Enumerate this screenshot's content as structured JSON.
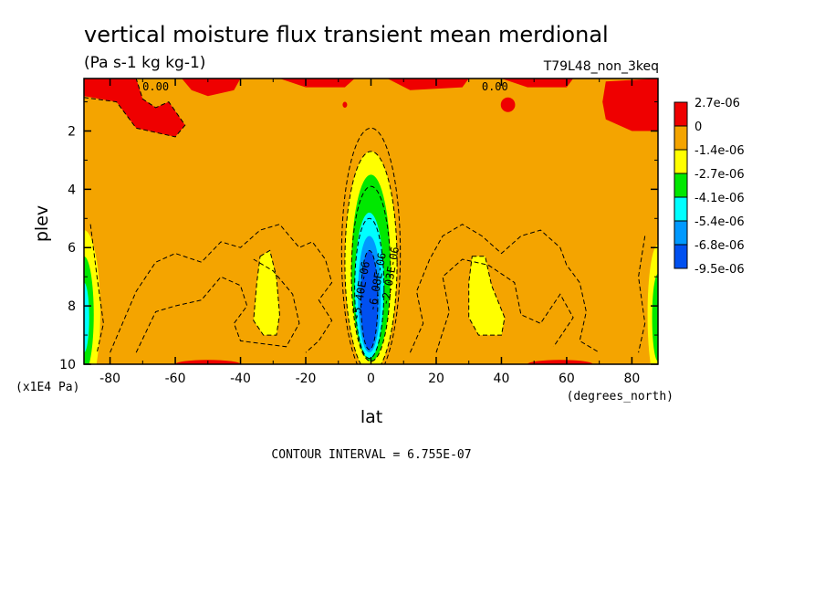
{
  "chart_data": {
    "type": "heatmap",
    "title": "vertical moisture flux transient mean merdional",
    "units": "(Pa s-1 kg kg-1)",
    "experiment": "T79L48_non_3keq",
    "xlabel": "lat",
    "ylabel": "plev",
    "x_unit_label": "(degrees_north)",
    "y_unit_label": "(x1E4 Pa)",
    "xlim": [
      -88,
      88
    ],
    "ylim": [
      0.2,
      10
    ],
    "y_inverted": true,
    "x_ticks": [
      -80,
      -60,
      -40,
      -20,
      0,
      20,
      40,
      60,
      80
    ],
    "x_tick_labels": [
      "-80",
      "-60",
      "-40",
      "-20",
      "0",
      "20",
      "40",
      "60",
      "80"
    ],
    "y_ticks": [
      2,
      4,
      6,
      8,
      10
    ],
    "y_tick_labels": [
      "2",
      "4",
      "6",
      "8",
      "10"
    ],
    "contour_interval_text": "CONTOUR INTERVAL = 6.755E-07",
    "contour_labels": [
      {
        "text": "0.00",
        "lat": -66,
        "plev": 0.6
      },
      {
        "text": "0.00",
        "lat": 38,
        "plev": 0.6
      },
      {
        "text": "-5.40E-06",
        "lat": -2,
        "plev": 7.5
      },
      {
        "text": "-6.08E-06",
        "lat": 3,
        "plev": 7.2
      },
      {
        "text": "-2.03E-06",
        "lat": 7,
        "plev": 7.0
      }
    ],
    "legend": {
      "placement": "right",
      "levels": [
        "2.7e-06",
        "0",
        "-1.4e-06",
        "-2.7e-06",
        "-4.1e-06",
        "-5.4e-06",
        "-6.8e-06",
        "-9.5e-06"
      ],
      "colors": [
        "#ef0000",
        "#f4a400",
        "#ffff00",
        "#00e800",
        "#00ffff",
        "#0099ff",
        "#0050f0"
      ]
    },
    "colors": {
      "positive": "#ef0000",
      "neutral": "#f4a400",
      "weak_negative": "#ffff00",
      "mid_negative": "#00e800",
      "strong_negative": "#00ffff",
      "very_strong_negative": "#0099ff",
      "extreme_negative": "#0050f0"
    }
  }
}
